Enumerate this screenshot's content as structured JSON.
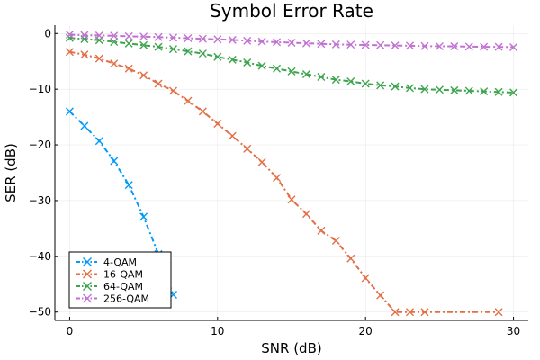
{
  "chart_data": {
    "type": "line",
    "title": "Symbol Error Rate",
    "xlabel": "SNR (dB)",
    "ylabel": "SER (dB)",
    "xlim": [
      -1,
      31
    ],
    "ylim": [
      -51.5,
      1.5
    ],
    "xticks": [
      0,
      10,
      20,
      30
    ],
    "yticks": [
      0,
      -10,
      -20,
      -30,
      -40,
      -50
    ],
    "xtick_labels": [
      "0",
      "10",
      "20",
      "30"
    ],
    "ytick_labels": [
      "0",
      "−10",
      "−20",
      "−30",
      "−40",
      "−50"
    ],
    "grid": true,
    "legend_position": "bottom-left",
    "marker": "x",
    "line_style": "dash-dot",
    "series": [
      {
        "name": "4-QAM",
        "color": "#009AFA",
        "points": [
          [
            0,
            -14.0
          ],
          [
            1,
            -16.6
          ],
          [
            2,
            -19.3
          ],
          [
            3,
            -22.9
          ],
          [
            4,
            -27.2
          ],
          [
            5,
            -32.9
          ],
          [
            6,
            -39.6
          ],
          [
            7,
            -46.9
          ]
        ]
      },
      {
        "name": "16-QAM",
        "color": "#E26F46",
        "points": [
          [
            0,
            -3.3
          ],
          [
            1,
            -3.8
          ],
          [
            2,
            -4.5
          ],
          [
            3,
            -5.4
          ],
          [
            4,
            -6.3
          ],
          [
            5,
            -7.5
          ],
          [
            6,
            -9.0
          ],
          [
            7,
            -10.3
          ],
          [
            8,
            -12.1
          ],
          [
            9,
            -14.0
          ],
          [
            10,
            -16.2
          ],
          [
            11,
            -18.4
          ],
          [
            12,
            -20.7
          ],
          [
            13,
            -23.1
          ],
          [
            14,
            -25.9
          ],
          [
            15,
            -29.8
          ],
          [
            16,
            -32.4
          ],
          [
            17,
            -35.4
          ],
          [
            18,
            -37.2
          ],
          [
            19,
            -40.4
          ],
          [
            20,
            -43.9
          ],
          [
            21,
            -47.0
          ],
          [
            22,
            -50.0
          ],
          [
            23,
            -50.0
          ],
          [
            24,
            -50.0
          ],
          [
            29,
            -50.0
          ]
        ]
      },
      {
        "name": "64-QAM",
        "color": "#3DA44E",
        "points": [
          [
            0,
            -0.8
          ],
          [
            1,
            -1.0
          ],
          [
            2,
            -1.2
          ],
          [
            3,
            -1.5
          ],
          [
            4,
            -1.8
          ],
          [
            5,
            -2.1
          ],
          [
            6,
            -2.4
          ],
          [
            7,
            -2.8
          ],
          [
            8,
            -3.2
          ],
          [
            9,
            -3.6
          ],
          [
            10,
            -4.2
          ],
          [
            11,
            -4.7
          ],
          [
            12,
            -5.2
          ],
          [
            13,
            -5.8
          ],
          [
            14,
            -6.3
          ],
          [
            15,
            -6.8
          ],
          [
            16,
            -7.3
          ],
          [
            17,
            -7.8
          ],
          [
            18,
            -8.3
          ],
          [
            19,
            -8.6
          ],
          [
            20,
            -9.0
          ],
          [
            21,
            -9.3
          ],
          [
            22,
            -9.5
          ],
          [
            23,
            -9.8
          ],
          [
            24,
            -10.0
          ],
          [
            25,
            -10.1
          ],
          [
            26,
            -10.2
          ],
          [
            27,
            -10.3
          ],
          [
            28,
            -10.4
          ],
          [
            29,
            -10.5
          ],
          [
            30,
            -10.6
          ]
        ]
      },
      {
        "name": "256-QAM",
        "color": "#C271D2",
        "points": [
          [
            0,
            -0.2
          ],
          [
            1,
            -0.3
          ],
          [
            2,
            -0.35
          ],
          [
            3,
            -0.4
          ],
          [
            4,
            -0.5
          ],
          [
            5,
            -0.55
          ],
          [
            6,
            -0.65
          ],
          [
            7,
            -0.75
          ],
          [
            8,
            -0.85
          ],
          [
            9,
            -0.95
          ],
          [
            10,
            -1.05
          ],
          [
            11,
            -1.15
          ],
          [
            12,
            -1.3
          ],
          [
            13,
            -1.45
          ],
          [
            14,
            -1.55
          ],
          [
            15,
            -1.65
          ],
          [
            16,
            -1.75
          ],
          [
            17,
            -1.85
          ],
          [
            18,
            -1.95
          ],
          [
            19,
            -2.0
          ],
          [
            20,
            -2.05
          ],
          [
            21,
            -2.1
          ],
          [
            22,
            -2.15
          ],
          [
            23,
            -2.2
          ],
          [
            24,
            -2.25
          ],
          [
            25,
            -2.3
          ],
          [
            26,
            -2.3
          ],
          [
            27,
            -2.35
          ],
          [
            28,
            -2.4
          ],
          [
            29,
            -2.4
          ],
          [
            30,
            -2.45
          ]
        ]
      }
    ]
  }
}
